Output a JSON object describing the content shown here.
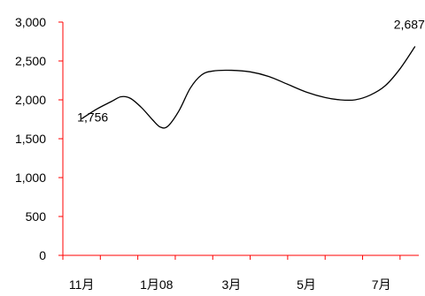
{
  "chart_data": {
    "type": "line",
    "title": "",
    "xlabel": "",
    "ylabel": "",
    "ylim": [
      0,
      3000
    ],
    "yticks": [
      {
        "value": 0,
        "label": "0"
      },
      {
        "value": 500,
        "label": "500"
      },
      {
        "value": 1000,
        "label": "1,000"
      },
      {
        "value": 1500,
        "label": "1,500"
      },
      {
        "value": 2000,
        "label": "2,000"
      },
      {
        "value": 2500,
        "label": "2,500"
      },
      {
        "value": 3000,
        "label": "3,000"
      }
    ],
    "xlim": [
      0,
      9.5
    ],
    "xticks": [
      {
        "value": 0.5,
        "label": "11月"
      },
      {
        "value": 2.5,
        "label": "1月08"
      },
      {
        "value": 4.5,
        "label": "3月"
      },
      {
        "value": 6.5,
        "label": "5月"
      },
      {
        "value": 8.5,
        "label": "7月"
      }
    ],
    "axis_color": "#ff0000",
    "line_color": "#000000",
    "grid": false,
    "legend": "none",
    "series": [
      {
        "x": [
          0.5,
          0.9,
          1.3,
          1.55,
          1.8,
          2.1,
          2.4,
          2.6,
          2.8,
          3.1,
          3.4,
          3.7,
          4.0,
          4.5,
          5.0,
          5.5,
          6.0,
          6.5,
          7.0,
          7.4,
          7.8,
          8.2,
          8.6,
          9.0,
          9.4
        ],
        "y": [
          1756,
          1880,
          1980,
          2040,
          2020,
          1900,
          1740,
          1650,
          1660,
          1860,
          2150,
          2320,
          2370,
          2380,
          2360,
          2300,
          2200,
          2100,
          2030,
          2000,
          2000,
          2060,
          2180,
          2400,
          2687
        ]
      }
    ],
    "annotations": [
      {
        "label": "1,756",
        "x": 0.5,
        "y": 1756
      },
      {
        "label": "2,687",
        "x": 9.4,
        "y": 2687
      }
    ]
  }
}
